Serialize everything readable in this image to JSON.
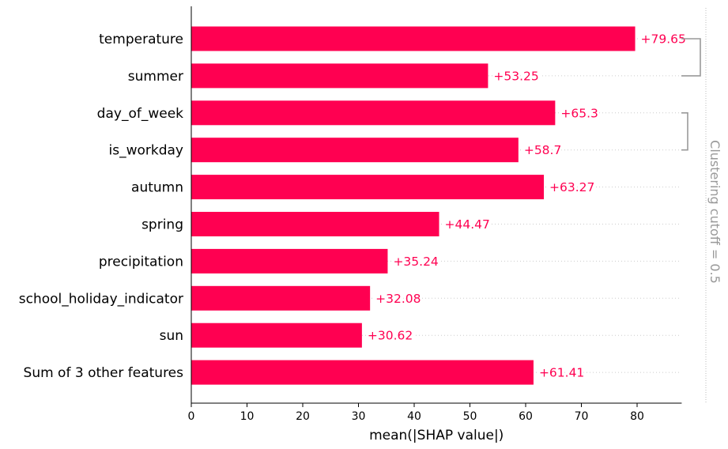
{
  "chart_data": {
    "type": "bar",
    "orientation": "horizontal",
    "categories": [
      "temperature",
      "summer",
      "day_of_week",
      "is_workday",
      "autumn",
      "spring",
      "precipitation",
      "school_holiday_indicator",
      "sun",
      "Sum of 3 other features"
    ],
    "values": [
      79.65,
      53.25,
      65.3,
      58.7,
      63.27,
      44.47,
      35.24,
      32.08,
      30.62,
      61.41
    ],
    "value_labels": [
      "+79.65",
      "+53.25",
      "+65.3",
      "+58.7",
      "+63.27",
      "+44.47",
      "+35.24",
      "+32.08",
      "+30.62",
      "+61.41"
    ],
    "xlabel": "mean(|SHAP value|)",
    "xlim": [
      0,
      88
    ],
    "xticks": [
      0,
      10,
      20,
      30,
      40,
      50,
      60,
      70,
      80
    ],
    "grid": "dotted row lines",
    "bar_color": "#ff0051",
    "clustering": {
      "label": "Clustering cutoff = 0.5",
      "color": "#999999",
      "brackets": [
        {
          "from": 0,
          "to": 1
        },
        {
          "from": 2,
          "to": 3
        }
      ]
    }
  }
}
